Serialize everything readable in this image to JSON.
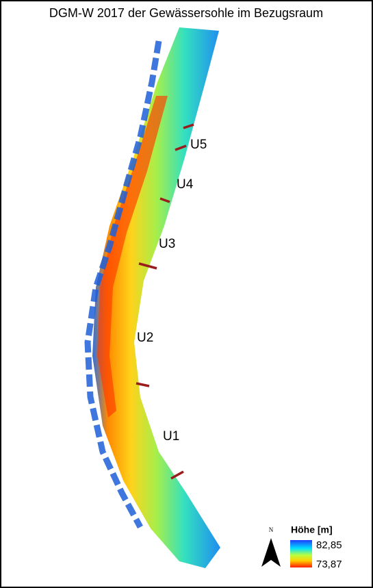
{
  "title": "DGM-W 2017 der Gewässersohle im Bezugsraum",
  "sections": [
    {
      "label": "U5"
    },
    {
      "label": "U4"
    },
    {
      "label": "U3"
    },
    {
      "label": "U2"
    },
    {
      "label": "U1"
    }
  ],
  "legend": {
    "north": "N",
    "title": "Höhe [m]",
    "max": "82,85",
    "min": "73,87"
  }
}
